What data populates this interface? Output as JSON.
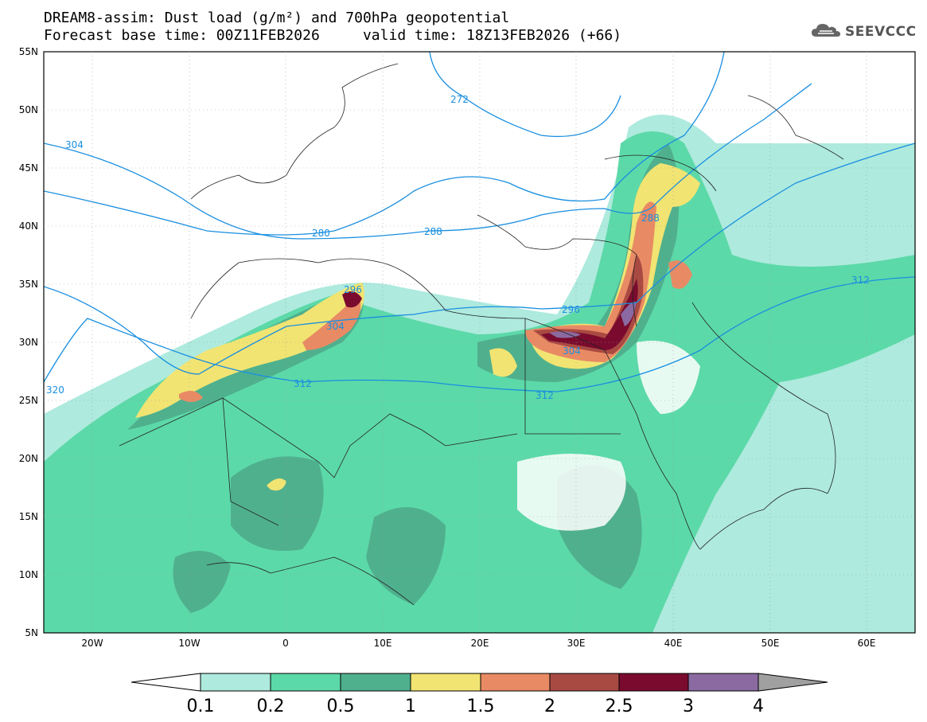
{
  "title": {
    "line1": "DREAM8-assim: Dust load (g/m²) and 700hPa geopotential",
    "line2": "Forecast base time: 00Z11FEB2026     valid time: 18Z13FEB2026 (+66)"
  },
  "logo": {
    "text": "SEEVCCC",
    "icon": "cloud-icon"
  },
  "map": {
    "lon_range": [
      -25,
      65
    ],
    "lat_range": [
      5,
      55
    ],
    "x_ticks": [
      "20W",
      "10W",
      "0",
      "10E",
      "20E",
      "30E",
      "40E",
      "50E",
      "60E"
    ],
    "y_ticks": [
      "55N",
      "50N",
      "45N",
      "40N",
      "35N",
      "30N",
      "25N",
      "20N",
      "15N",
      "10N",
      "5N"
    ],
    "contour_labels": [
      "272",
      "280",
      "288",
      "296",
      "304",
      "312",
      "320"
    ],
    "contour_color": "#1a8fe0"
  },
  "colorbar": {
    "levels": [
      "0.1",
      "0.2",
      "0.5",
      "1",
      "1.5",
      "2",
      "2.5",
      "3",
      "4"
    ],
    "colors": [
      "#ffffff",
      "#aeeade",
      "#5cd9a8",
      "#4fb08e",
      "#f1e472",
      "#e88a64",
      "#a94a42",
      "#7a0b2e",
      "#8a6aa0",
      "#a0a0a0"
    ]
  }
}
